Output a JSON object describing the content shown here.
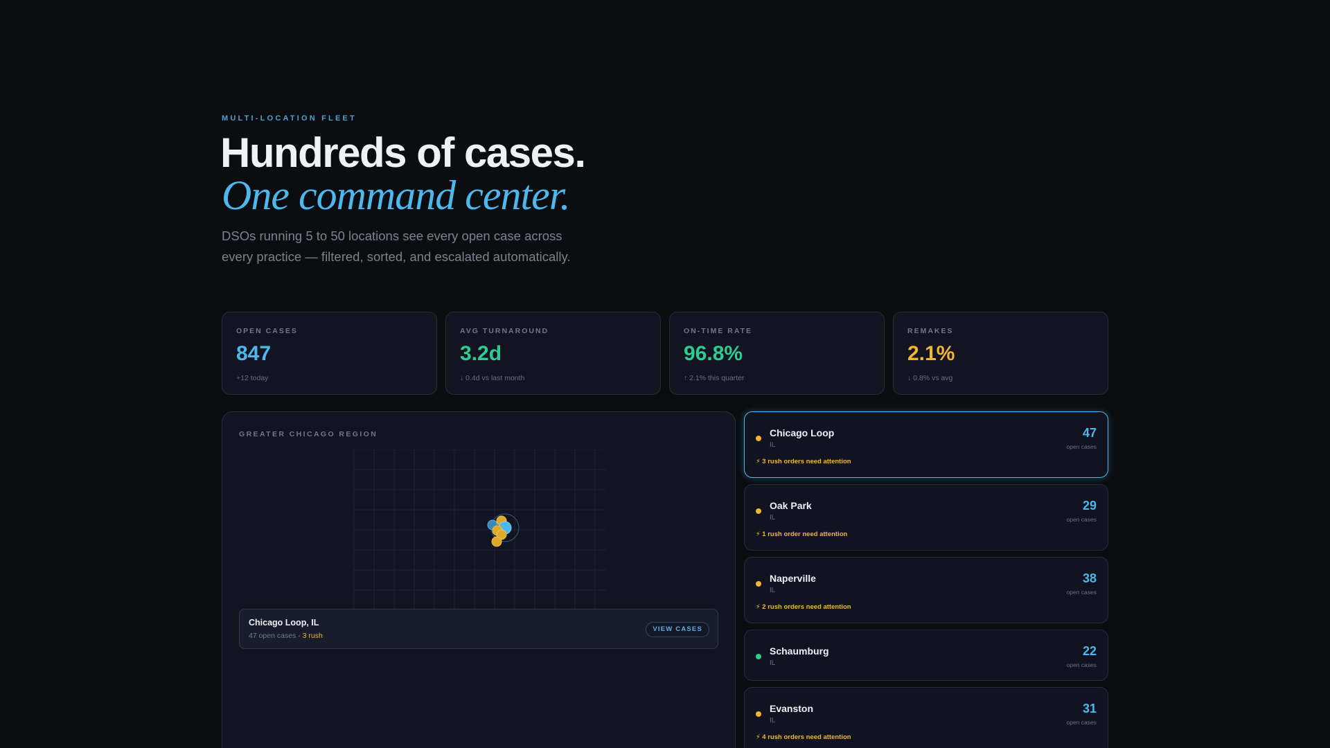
{
  "hero": {
    "eyebrow": "MULTI-LOCATION FLEET",
    "headline": "Hundreds of cases.",
    "headline_italic": "One command center.",
    "subtitle": "DSOs running 5 to 50 locations see every open case across every practice — filtered, sorted, and escalated automatically."
  },
  "colors": {
    "accent_blue": "#4cb8ee",
    "accent_green": "#2ecc8f",
    "accent_amber": "#f2b630",
    "background": "#0b0d11"
  },
  "stats": [
    {
      "label": "OPEN CASES",
      "value": "847",
      "note": "+12 today",
      "color": "#4cb8ee"
    },
    {
      "label": "AVG TURNAROUND",
      "value": "3.2d",
      "note": "↓ 0.4d vs last month",
      "color": "#2ecc8f"
    },
    {
      "label": "ON-TIME RATE",
      "value": "96.8%",
      "note": "↑ 2.1% this quarter",
      "color": "#2ecc8f"
    },
    {
      "label": "REMAKES",
      "value": "2.1%",
      "note": "↓ 0.8% vs avg",
      "color": "#f2b630"
    }
  ],
  "map": {
    "region_label": "GREATER CHICAGO REGION",
    "markers": [
      {
        "name": "Chicago Loop",
        "status": "selected",
        "color": "#4cb8ee"
      },
      {
        "name": "Oak Park",
        "status": "rush",
        "color": "#f2b630"
      },
      {
        "name": "Naperville",
        "status": "rush",
        "color": "#f2b630"
      },
      {
        "name": "Schaumburg",
        "status": "ok",
        "color": "#4cb8ee"
      },
      {
        "name": "Evanston",
        "status": "rush",
        "color": "#f2b630"
      }
    ],
    "popup": {
      "title": "Chicago Loop, IL",
      "open_cases": "47 open cases",
      "separator": "·",
      "rush": "3 rush",
      "button_label": "VIEW CASES"
    }
  },
  "locations": [
    {
      "name": "Chicago Loop",
      "state": "IL",
      "count": "47",
      "count_label": "open cases",
      "rush": "⚡ 3 rush orders need attention",
      "dot_color": "#f2b630",
      "active": true
    },
    {
      "name": "Oak Park",
      "state": "IL",
      "count": "29",
      "count_label": "open cases",
      "rush": "⚡ 1 rush order need attention",
      "dot_color": "#f2b630",
      "active": false
    },
    {
      "name": "Naperville",
      "state": "IL",
      "count": "38",
      "count_label": "open cases",
      "rush": "⚡ 2 rush orders need attention",
      "dot_color": "#f2b630",
      "active": false
    },
    {
      "name": "Schaumburg",
      "state": "IL",
      "count": "22",
      "count_label": "open cases",
      "rush": "",
      "dot_color": "#2ecc8f",
      "active": false
    },
    {
      "name": "Evanston",
      "state": "IL",
      "count": "31",
      "count_label": "open cases",
      "rush": "⚡ 4 rush orders need attention",
      "dot_color": "#f2b630",
      "active": false
    }
  ]
}
